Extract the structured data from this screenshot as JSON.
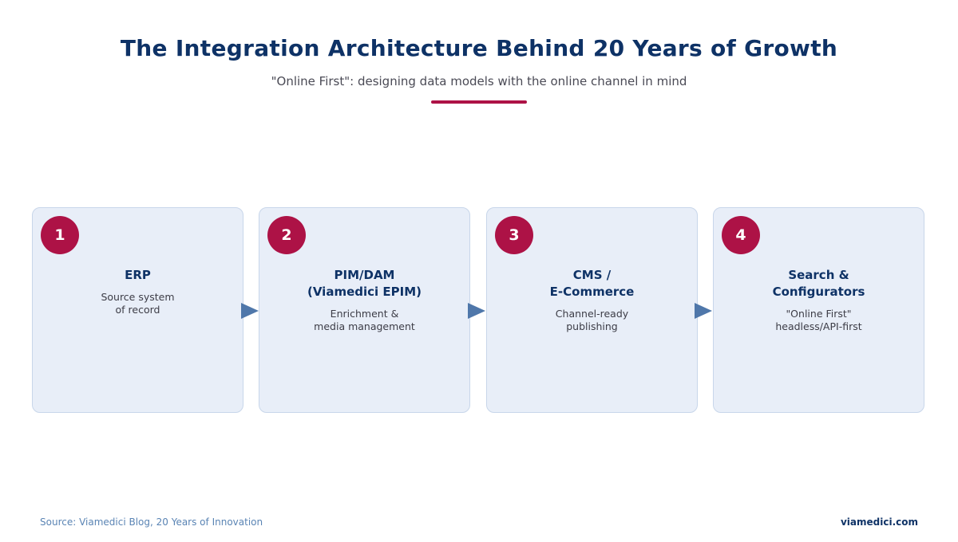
{
  "header": {
    "title": "The Integration Architecture Behind 20 Years of Growth",
    "subtitle": "\"Online First\": designing data models with the online channel in mind"
  },
  "steps": [
    {
      "number": "1",
      "title": "ERP",
      "description": "Source system\nof record"
    },
    {
      "number": "2",
      "title": "PIM/DAM\n(Viamedici EPIM)",
      "description": "Enrichment &\nmedia management"
    },
    {
      "number": "3",
      "title": "CMS /\nE-Commerce",
      "description": "Channel-ready\npublishing"
    },
    {
      "number": "4",
      "title": "Search &\nConfigurators",
      "description": "\"Online First\"\nheadless/API-first"
    }
  ],
  "footer": {
    "source": "Source: Viamedici Blog, 20 Years of Innovation",
    "brand": "viamedici.com"
  },
  "colors": {
    "title": "#0e3266",
    "accent": "#ad1246",
    "card_bg": "#e8eef8",
    "arrow": "#4f77aa"
  },
  "icons": [
    "arrow-right-icon"
  ]
}
